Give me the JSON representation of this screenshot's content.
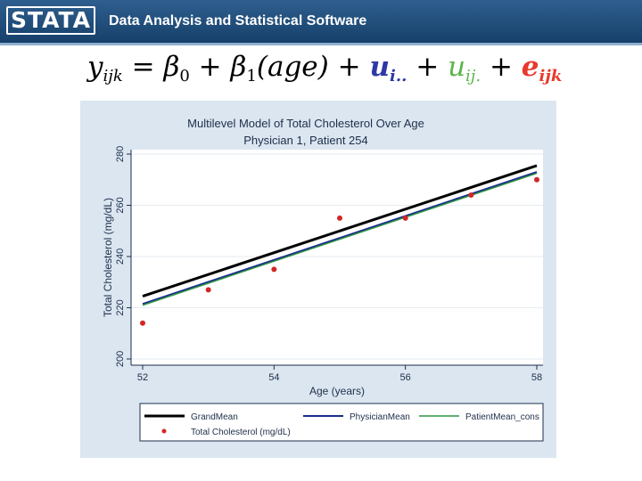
{
  "header": {
    "logo": "STATA",
    "title": "Data Analysis and Statistical Software"
  },
  "equation": {
    "y": "y",
    "y_sub": "ijk",
    "eq": " = ",
    "beta0": "β",
    "beta0_sub": "0",
    "plus1": " + ",
    "beta1": "β",
    "beta1_sub": "1",
    "age": "(age)",
    "plus2": " + ",
    "u1": "u",
    "u1_sub": "i..",
    "plus3": " + ",
    "u2": "u",
    "u2_sub": "ij.",
    "plus4": " + ",
    "e": "e",
    "e_sub": "ijk"
  },
  "colors": {
    "grand": "#000000",
    "physician": "#1a2c8c",
    "patient": "#2e9444",
    "points": "#d32626"
  },
  "chart_data": {
    "type": "line",
    "title": "Multilevel Model of Total Cholesterol Over Age",
    "subtitle": "Physician 1, Patient 254",
    "xlabel": "Age (years)",
    "ylabel": "Total Cholesterol (mg/dL)",
    "xlim": [
      52,
      58
    ],
    "ylim": [
      200,
      280
    ],
    "xticks": [
      52,
      54,
      56,
      58
    ],
    "yticks": [
      200,
      220,
      240,
      260,
      280
    ],
    "grid": true,
    "legend_position": "bottom",
    "series": [
      {
        "name": "GrandMean",
        "kind": "line",
        "x": [
          52,
          58
        ],
        "y": [
          224.5,
          275.5
        ]
      },
      {
        "name": "PhysicianMean",
        "kind": "line",
        "x": [
          52,
          58
        ],
        "y": [
          221.5,
          273
        ]
      },
      {
        "name": "PatientMean_cons",
        "kind": "line",
        "x": [
          52,
          58
        ],
        "y": [
          221,
          272.5
        ]
      },
      {
        "name": "Total Cholesterol (mg/dL)",
        "kind": "scatter",
        "x": [
          52,
          53,
          54,
          55,
          56,
          57,
          58
        ],
        "y": [
          214,
          227,
          235,
          255,
          255,
          264,
          270
        ]
      }
    ]
  }
}
